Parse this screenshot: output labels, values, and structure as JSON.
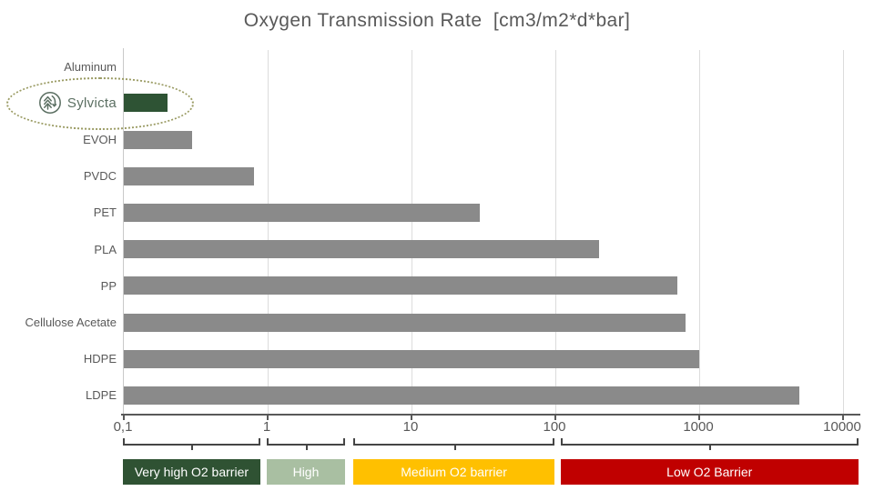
{
  "title": "Oxygen Transmission Rate  [cm3/m2*d*bar]",
  "branding": {
    "name": "Sylvicta",
    "logo_icon": "tree-with-recycle-arrow-in-circle",
    "logo_color": "#5b6f62",
    "highlight_ellipse_color": "#9a9b63"
  },
  "chart_data": {
    "type": "bar",
    "orientation": "horizontal",
    "x_scale": "log",
    "xlim": [
      0.1,
      10000
    ],
    "x_tick_values": [
      0.1,
      1,
      10,
      100,
      1000,
      10000
    ],
    "x_tick_labels": [
      "0,1",
      "1",
      "10",
      "100",
      "1000",
      "10000"
    ],
    "grid": "vertical-light-gray",
    "title": "Oxygen Transmission Rate  [cm3/m2*d*bar]",
    "categories": [
      "Aluminum",
      "Sylvicta",
      "EVOH",
      "PVDC",
      "PET",
      "PLA",
      "PP",
      "Cellulose Acetate",
      "HDPE",
      "LDPE"
    ],
    "values": [
      0,
      0.2,
      0.3,
      0.8,
      30,
      200,
      700,
      800,
      1000,
      5000
    ],
    "highlight_category": "Sylvicta",
    "bar_color_default": "#8a8a8a",
    "bar_color_highlight": "#2e5334",
    "zones": [
      {
        "label": "Very high O2 barrier",
        "color": "#2f5233",
        "range": [
          0.1,
          0.9
        ]
      },
      {
        "label": "High",
        "color": "#a9bfa2",
        "range": [
          1,
          3.5
        ]
      },
      {
        "label": "Medium O2 barrier",
        "color": "#ffc000",
        "range": [
          4,
          100
        ]
      },
      {
        "label": "Low O2 Barrier",
        "color": "#c00000",
        "range": [
          110,
          10000
        ]
      }
    ]
  }
}
